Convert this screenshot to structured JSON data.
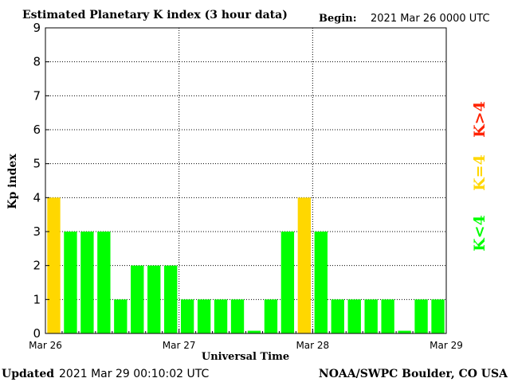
{
  "header": {
    "title": "Estimated Planetary K index (3 hour data)",
    "begin_label": "Begin:",
    "begin_value": "2021 Mar 26 0000 UTC"
  },
  "footer": {
    "updated_label": "Updated",
    "updated_value": "2021 Mar 29 00:10:02 UTC",
    "source": "NOAA/SWPC Boulder, CO USA"
  },
  "legend": {
    "high": "K>4",
    "equal": "K=4",
    "low": "K<4"
  },
  "colors": {
    "low": "#00ff00",
    "equal": "#ffd700",
    "high": "#ff2200",
    "grid": "#000000",
    "background": "#ffffff"
  },
  "chart_data": {
    "type": "bar",
    "title": "Estimated Planetary K index (3 hour data)",
    "xlabel": "Universal Time",
    "ylabel": "Kp index",
    "ylim": [
      0,
      9
    ],
    "yticks": [
      "0",
      "1",
      "2",
      "3",
      "4",
      "5",
      "6",
      "7",
      "8",
      "9"
    ],
    "xticks": [
      "Mar 26",
      "Mar 27",
      "Mar 28",
      "Mar 29"
    ],
    "interval_hours": 3,
    "values": [
      4,
      3,
      3,
      3,
      1,
      2,
      2,
      2,
      1,
      1,
      1,
      1,
      0,
      1,
      3,
      4,
      3,
      1,
      1,
      1,
      1,
      0,
      1,
      1
    ],
    "grid": true
  }
}
